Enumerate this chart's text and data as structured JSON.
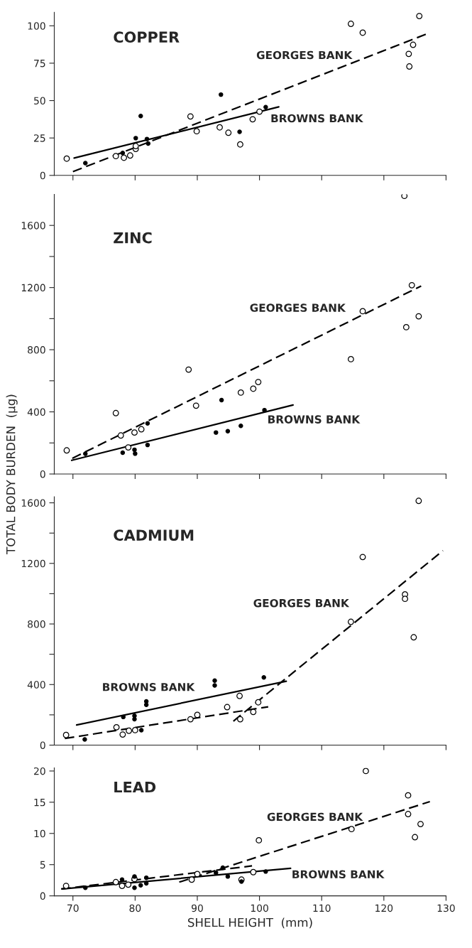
{
  "chart_data": [
    {
      "type": "scatter",
      "title": "COPPER",
      "xlim": [
        67,
        130
      ],
      "xticks": [
        70,
        80,
        90,
        100,
        110,
        120,
        130
      ],
      "ylim": [
        0,
        109
      ],
      "yticks": [
        0,
        25,
        50,
        75,
        100
      ],
      "tick_labels": "y",
      "grid": false,
      "legend": false,
      "series": [
        {
          "marker": "circle",
          "color": "#ffffff",
          "x": [
            69.0,
            76.9,
            78.2,
            79.2,
            80.1,
            80.1,
            88.9,
            89.9,
            93.6,
            95.0,
            96.9,
            98.9,
            100.0,
            114.7,
            116.6,
            124.0,
            124.1,
            124.7,
            125.7
          ],
          "values": [
            11.2,
            12.9,
            11.8,
            13.3,
            17.7,
            19.6,
            39.4,
            29.5,
            32.1,
            28.5,
            20.7,
            37.5,
            42.6,
            101.3,
            95.4,
            81.2,
            72.8,
            87.3,
            106.5
          ]
        },
        {
          "marker": "circle",
          "color": "#000000",
          "x": [
            72.0,
            78.0,
            80.1,
            80.9,
            81.9,
            82.1,
            93.8,
            96.8,
            101.0
          ],
          "values": [
            8.2,
            15.0,
            24.9,
            39.7,
            24.3,
            21.3,
            54.0,
            29.1,
            45.6
          ]
        },
        {
          "type": "line",
          "line_style": "dashed",
          "color": "#000000",
          "x": [
            70.0,
            127.0
          ],
          "values": [
            2.5,
            94.7
          ]
        },
        {
          "type": "line",
          "line_style": "solid",
          "color": "#000000",
          "x": [
            70.2,
            103.1
          ],
          "values": [
            11.6,
            45.8
          ]
        }
      ],
      "annotations": [
        "GEORGES BANK",
        "BROWNS BANK"
      ]
    },
    {
      "type": "scatter",
      "title": "ZINC",
      "ylabel": "TOTAL BODY BURDEN  (µg)",
      "xlim": [
        67,
        130
      ],
      "xticks": [
        70,
        80,
        90,
        100,
        110,
        120,
        130
      ],
      "ylim": [
        0,
        1800
      ],
      "yticks": [
        0,
        {
          "value": 200,
          "label": null
        },
        400,
        {
          "value": 600,
          "label": null
        },
        800,
        {
          "value": 1000,
          "label": null
        },
        1200,
        {
          "value": 1400,
          "label": null
        },
        1600
      ],
      "tick_labels": "y",
      "grid": false,
      "legend": false,
      "series": [
        {
          "marker": "circle",
          "color": "#ffffff",
          "x": [
            69.0,
            76.9,
            77.7,
            78.9,
            79.9,
            81.0,
            88.6,
            89.8,
            97.0,
            99.0,
            99.8,
            114.7,
            116.6,
            123.3,
            123.6,
            124.5,
            125.6
          ],
          "values": [
            152,
            392,
            248,
            171,
            267,
            288,
            672,
            440,
            524,
            549,
            592,
            739,
            1048,
            1790,
            945,
            1215,
            1015
          ]
        },
        {
          "marker": "circle",
          "color": "#000000",
          "x": [
            72.0,
            78.0,
            79.9,
            80.0,
            82.0,
            82.0,
            93.0,
            93.9,
            94.9,
            97.0,
            100.8
          ],
          "values": [
            130,
            137,
            156,
            131,
            187,
            326,
            267,
            476,
            276,
            310,
            411
          ]
        },
        {
          "type": "line",
          "line_style": "dashed",
          "color": "#000000",
          "x": [
            69.9,
            126.0
          ],
          "values": [
            101,
            1210
          ]
        },
        {
          "type": "line",
          "line_style": "solid",
          "color": "#000000",
          "x": [
            69.8,
            105.4
          ],
          "values": [
            88,
            444
          ]
        }
      ],
      "annotations": [
        "GEORGES BANK",
        "BROWNS BANK"
      ]
    },
    {
      "type": "scatter",
      "title": "CADMIUM",
      "xlim": [
        67,
        130
      ],
      "xticks": [
        70,
        80,
        90,
        100,
        110,
        120,
        130
      ],
      "ylim": [
        0,
        1640
      ],
      "yticks": [
        0,
        {
          "value": 200,
          "label": null
        },
        400,
        {
          "value": 600,
          "label": null
        },
        800,
        {
          "value": 1000,
          "label": null
        },
        1200,
        {
          "value": 1400,
          "label": null
        },
        1600
      ],
      "tick_labels": "y",
      "grid": false,
      "legend": false,
      "series": [
        {
          "marker": "circle",
          "color": "#ffffff",
          "x": [
            68.9,
            77.0,
            78.0,
            79.0,
            80.0,
            88.9,
            90.0,
            94.8,
            96.8,
            96.9,
            99.0,
            99.8,
            114.7,
            116.6,
            123.4,
            123.4,
            124.8,
            125.6
          ],
          "values": [
            67,
            118,
            70,
            95,
            99,
            171,
            200,
            251,
            325,
            171,
            219,
            283,
            814,
            1242,
            995,
            966,
            712,
            1613
          ]
        },
        {
          "marker": "circle",
          "color": "#000000",
          "x": [
            71.9,
            78.1,
            79.9,
            79.9,
            81.0,
            81.8,
            81.8,
            92.8,
            92.8,
            100.7
          ],
          "values": [
            38,
            186,
            194,
            171,
            99,
            289,
            266,
            426,
            394,
            447
          ]
        },
        {
          "type": "line",
          "line_style": "dashed",
          "color": "#000000",
          "x": [
            68.7,
            101.4
          ],
          "values": [
            44,
            253
          ]
        },
        {
          "type": "line",
          "line_style": "dashed",
          "color": "#000000",
          "x": [
            95.8,
            129.5
          ],
          "values": [
            158,
            1284
          ]
        },
        {
          "type": "line",
          "line_style": "solid",
          "color": "#000000",
          "x": [
            70.6,
            104.3
          ],
          "values": [
            133,
            422
          ]
        }
      ],
      "annotations": [
        "GEORGES BANK",
        "BROWNS BANK"
      ]
    },
    {
      "type": "scatter",
      "title": "LEAD",
      "xlabel": "SHELL HEIGHT  (mm)",
      "xlim": [
        67,
        130
      ],
      "xticks": [
        70,
        80,
        90,
        100,
        110,
        120,
        130
      ],
      "ylim": [
        0,
        20.5
      ],
      "yticks": [
        0,
        5,
        10,
        15,
        20
      ],
      "grid": false,
      "legend": false,
      "series": [
        {
          "marker": "circle",
          "color": "#ffffff",
          "x": [
            68.9,
            76.9,
            77.9,
            78.9,
            79.9,
            89.1,
            90.0,
            97.1,
            99.0,
            99.9,
            114.8,
            117.1,
            123.9,
            123.9,
            125.0,
            125.9
          ],
          "values": [
            1.6,
            2.2,
            1.6,
            1.8,
            2.7,
            2.6,
            3.5,
            2.6,
            3.8,
            8.9,
            10.7,
            20.0,
            16.1,
            13.1,
            9.4,
            11.5
          ]
        },
        {
          "marker": "circle",
          "color": "#000000",
          "x": [
            72.0,
            77.9,
            79.9,
            79.9,
            80.9,
            81.8,
            81.8,
            93.0,
            94.1,
            94.9,
            97.1,
            101.0
          ],
          "values": [
            1.3,
            2.6,
            3.1,
            1.3,
            1.7,
            2.9,
            2.0,
            3.7,
            4.5,
            3.1,
            2.3,
            3.9
          ]
        },
        {
          "type": "line",
          "line_style": "dashed",
          "color": "#000000",
          "x": [
            68.1,
            98.8
          ],
          "values": [
            1.1,
            4.8
          ]
        },
        {
          "type": "line",
          "line_style": "dashed",
          "color": "#000000",
          "x": [
            87.1,
            127.4
          ],
          "values": [
            2.2,
            15.1
          ]
        },
        {
          "type": "line",
          "line_style": "solid",
          "color": "#000000",
          "x": [
            68.3,
            105.0
          ],
          "values": [
            1.1,
            4.4
          ]
        }
      ],
      "annotations": [
        "GEORGES BANK",
        "BROWNS BANK"
      ]
    }
  ]
}
